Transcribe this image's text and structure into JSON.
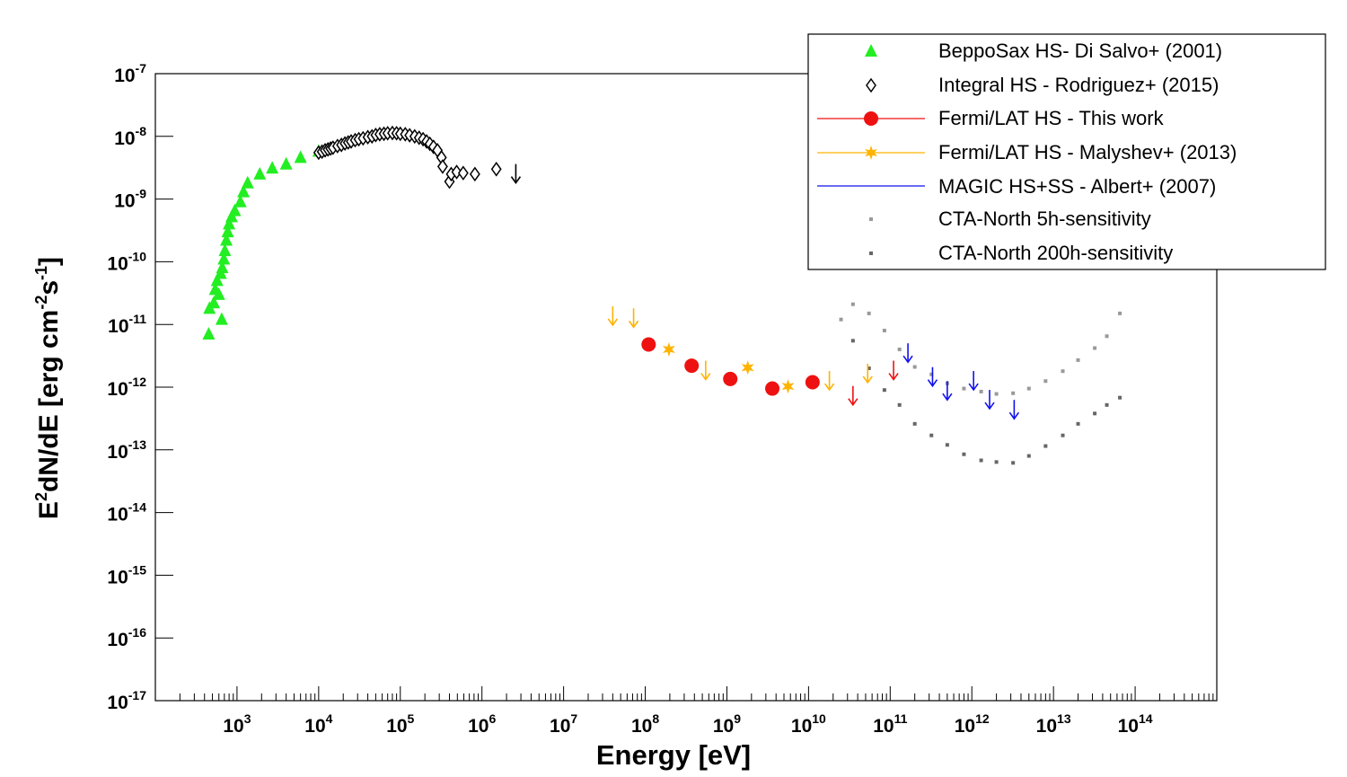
{
  "chart_data": {
    "type": "scatter",
    "xscale": "log",
    "yscale": "log",
    "xlabel": "Energy [eV]",
    "ylabel_parts": {
      "a": "E",
      "b": "2",
      "c": "dN/dE [erg cm",
      "d": "-2",
      "e": "s",
      "f": "-1",
      "g": "]"
    },
    "xlim": [
      100,
      1000000000000000.0
    ],
    "ylim": [
      1e-17,
      1e-07
    ],
    "x_tick_labels": [
      {
        "base": "10",
        "exp": "3",
        "value": 1000.0
      },
      {
        "base": "10",
        "exp": "4",
        "value": 10000.0
      },
      {
        "base": "10",
        "exp": "5",
        "value": 100000.0
      },
      {
        "base": "10",
        "exp": "6",
        "value": 1000000.0
      },
      {
        "base": "10",
        "exp": "7",
        "value": 10000000.0
      },
      {
        "base": "10",
        "exp": "8",
        "value": 100000000.0
      },
      {
        "base": "10",
        "exp": "9",
        "value": 1000000000.0
      },
      {
        "base": "10",
        "exp": "10",
        "value": 10000000000.0
      },
      {
        "base": "10",
        "exp": "11",
        "value": 100000000000.0
      },
      {
        "base": "10",
        "exp": "12",
        "value": 1000000000000.0
      },
      {
        "base": "10",
        "exp": "13",
        "value": 10000000000000.0
      },
      {
        "base": "10",
        "exp": "14",
        "value": 100000000000000.0
      }
    ],
    "y_tick_labels": [
      {
        "base": "10",
        "exp": "-7",
        "value": 1e-07
      },
      {
        "base": "10",
        "exp": "-8",
        "value": 1e-08
      },
      {
        "base": "10",
        "exp": "-9",
        "value": 1e-09
      },
      {
        "base": "10",
        "exp": "-10",
        "value": 1e-10
      },
      {
        "base": "10",
        "exp": "-11",
        "value": 1e-11
      },
      {
        "base": "10",
        "exp": "-12",
        "value": 1e-12
      },
      {
        "base": "10",
        "exp": "-13",
        "value": 1e-13
      },
      {
        "base": "10",
        "exp": "-14",
        "value": 1e-14
      },
      {
        "base": "10",
        "exp": "-15",
        "value": 1e-15
      },
      {
        "base": "10",
        "exp": "-16",
        "value": 1e-16
      },
      {
        "base": "10",
        "exp": "-17",
        "value": 1e-17
      }
    ],
    "legend_position": "top-right",
    "series": [
      {
        "name": "BeppoSax  HS- Di Salvo+ (2001)",
        "color": "#22ee22",
        "marker": "triangle",
        "points": [
          [
            450,
            7e-12
          ],
          [
            460,
            1.8e-11
          ],
          [
            520,
            2.2e-11
          ],
          [
            540,
            3.6e-11
          ],
          [
            570,
            5e-11
          ],
          [
            600,
            3e-11
          ],
          [
            630,
            6.5e-11
          ],
          [
            650,
            1.2e-11
          ],
          [
            660,
            8e-11
          ],
          [
            690,
            1.1e-10
          ],
          [
            710,
            1.5e-10
          ],
          [
            740,
            2.2e-10
          ],
          [
            770,
            3e-10
          ],
          [
            800,
            4e-10
          ],
          [
            860,
            5.2e-10
          ],
          [
            940,
            6.5e-10
          ],
          [
            1100,
            9e-10
          ],
          [
            1200,
            1.3e-09
          ],
          [
            1350,
            1.8e-09
          ],
          [
            1900,
            2.5e-09
          ],
          [
            2700,
            3.1e-09
          ],
          [
            4000,
            3.6e-09
          ],
          [
            6000,
            4.6e-09
          ],
          [
            10000,
            5.8e-09
          ]
        ]
      },
      {
        "name": "Integral HS - Rodriguez+ (2015)",
        "color": "#000000",
        "marker": "open-diamond",
        "points": [
          [
            10000,
            5.5e-09
          ],
          [
            11000,
            5.7e-09
          ],
          [
            12000,
            6e-09
          ],
          [
            13000,
            6.2e-09
          ],
          [
            14000,
            6.4e-09
          ],
          [
            15000,
            6.6e-09
          ],
          [
            17000,
            7e-09
          ],
          [
            19000,
            7.3e-09
          ],
          [
            21000,
            7.7e-09
          ],
          [
            23000,
            8e-09
          ],
          [
            25000,
            8.3e-09
          ],
          [
            28000,
            8.7e-09
          ],
          [
            31000,
            9e-09
          ],
          [
            35000,
            9.3e-09
          ],
          [
            40000,
            9.7e-09
          ],
          [
            45000,
            1e-08
          ],
          [
            50000,
            1.05e-08
          ],
          [
            56000,
            1.08e-08
          ],
          [
            63000,
            1.1e-08
          ],
          [
            70000,
            1.12e-08
          ],
          [
            80000,
            1.13e-08
          ],
          [
            90000,
            1.12e-08
          ],
          [
            100000,
            1.1e-08
          ],
          [
            115000,
            1.08e-08
          ],
          [
            130000,
            1.04e-08
          ],
          [
            150000,
            1e-08
          ],
          [
            170000,
            9.5e-09
          ],
          [
            190000,
            9e-09
          ],
          [
            210000,
            8.3e-09
          ],
          [
            230000,
            7.6e-09
          ],
          [
            255000,
            6.8e-09
          ],
          [
            285000,
            6e-09
          ],
          [
            320000,
            4.6e-09
          ],
          [
            330000,
            3.3e-09
          ],
          [
            400000,
            1.9e-09
          ],
          [
            420000,
            2.5e-09
          ],
          [
            490000,
            2.7e-09
          ],
          [
            590000,
            2.6e-09
          ],
          [
            820000,
            2.5e-09
          ],
          [
            1500000,
            3e-09
          ]
        ]
      },
      {
        "name": "Fermi/LAT HS - This work",
        "color": "#ee1111",
        "marker": "filled-circle",
        "points": [
          [
            110000000.0,
            4.8e-12
          ],
          [
            370000000.0,
            2.2e-12
          ],
          [
            1100000000.0,
            1.35e-12
          ],
          [
            3600000000.0,
            9.5e-13
          ],
          [
            11200000000.0,
            1.2e-12
          ]
        ]
      },
      {
        "name": "Fermi/LAT HS - Malyshev+ (2013)",
        "color": "#ffb300",
        "marker": "star",
        "points": [
          [
            195000000.0,
            4e-12
          ],
          [
            1800000000.0,
            2.05e-12
          ],
          [
            5600000000.0,
            1.03e-12
          ]
        ]
      },
      {
        "name": "MAGIC HS+SS - Albert+ (2007)",
        "color": "#1111ee",
        "marker": "line",
        "points": []
      },
      {
        "name": "CTA-North 5h-sensitivity",
        "color": "#999999",
        "marker": "dot",
        "points": [
          [
            25000000000.0,
            1.2e-11
          ],
          [
            35000000000.0,
            2.1e-11
          ],
          [
            55000000000.0,
            1.5e-11
          ],
          [
            85000000000.0,
            8e-12
          ],
          [
            130000000000.0,
            4e-12
          ],
          [
            200000000000.0,
            2.1e-12
          ],
          [
            320000000000.0,
            1.6e-12
          ],
          [
            500000000000.0,
            1.15e-12
          ],
          [
            800000000000.0,
            9.5e-13
          ],
          [
            1300000000000.0,
            8.5e-13
          ],
          [
            2000000000000.0,
            7.8e-13
          ],
          [
            3200000000000.0,
            8e-13
          ],
          [
            5000000000000.0,
            9.5e-13
          ],
          [
            8000000000000.0,
            1.25e-12
          ],
          [
            13000000000000.0,
            1.8e-12
          ],
          [
            20000000000000.0,
            2.7e-12
          ],
          [
            32000000000000.0,
            4.2e-12
          ],
          [
            45000000000000.0,
            6.5e-12
          ],
          [
            65000000000000.0,
            1.5e-11
          ]
        ]
      },
      {
        "name": "CTA-North 200h-sensitivity",
        "color": "#666666",
        "marker": "dot",
        "points": [
          [
            35000000000.0,
            5.5e-12
          ],
          [
            55000000000.0,
            2e-12
          ],
          [
            85000000000.0,
            9e-13
          ],
          [
            130000000000.0,
            5.2e-13
          ],
          [
            200000000000.0,
            2.6e-13
          ],
          [
            320000000000.0,
            1.7e-13
          ],
          [
            500000000000.0,
            1.2e-13
          ],
          [
            800000000000.0,
            8.5e-14
          ],
          [
            1300000000000.0,
            6.8e-14
          ],
          [
            2000000000000.0,
            6.4e-14
          ],
          [
            3200000000000.0,
            6.2e-14
          ],
          [
            5000000000000.0,
            8e-14
          ],
          [
            8000000000000.0,
            1.15e-13
          ],
          [
            13000000000000.0,
            1.7e-13
          ],
          [
            20000000000000.0,
            2.6e-13
          ],
          [
            32000000000000.0,
            3.8e-13
          ],
          [
            45000000000000.0,
            5.2e-13
          ],
          [
            65000000000000.0,
            6.8e-13
          ]
        ]
      }
    ],
    "upper_limits": [
      {
        "series": "Integral HS - Rodriguez+ (2015)",
        "color": "#000000",
        "x": 2600000.0,
        "y": 2.6e-09
      },
      {
        "series": "Fermi/LAT HS - Malyshev+ (2013)",
        "color": "#ffb300",
        "x": 40000000.0,
        "y": 1.4e-11
      },
      {
        "series": "Fermi/LAT HS - Malyshev+ (2013)",
        "color": "#ffb300",
        "x": 72000000.0,
        "y": 1.3e-11
      },
      {
        "series": "Fermi/LAT HS - Malyshev+ (2013)",
        "color": "#ffb300",
        "x": 550000000.0,
        "y": 1.9e-12
      },
      {
        "series": "Fermi/LAT HS - Malyshev+ (2013)",
        "color": "#ffb300",
        "x": 18000000000.0,
        "y": 1.3e-12
      },
      {
        "series": "Fermi/LAT HS - Malyshev+ (2013)",
        "color": "#ffb300",
        "x": 53000000000.0,
        "y": 1.7e-12
      },
      {
        "series": "Fermi/LAT HS - This work",
        "color": "#ee1111",
        "x": 35000000000.0,
        "y": 7.5e-13
      },
      {
        "series": "Fermi/LAT HS - This work",
        "color": "#ee1111",
        "x": 110000000000.0,
        "y": 1.9e-12
      },
      {
        "series": "MAGIC HS+SS - Albert+ (2007)",
        "color": "#1111ee",
        "x": 165000000000.0,
        "y": 3.6e-12
      },
      {
        "series": "MAGIC HS+SS - Albert+ (2007)",
        "color": "#1111ee",
        "x": 330000000000.0,
        "y": 1.5e-12
      },
      {
        "series": "MAGIC HS+SS - Albert+ (2007)",
        "color": "#1111ee",
        "x": 500000000000.0,
        "y": 9e-13
      },
      {
        "series": "MAGIC HS+SS - Albert+ (2007)",
        "color": "#1111ee",
        "x": 1050000000000.0,
        "y": 1.3e-12
      },
      {
        "series": "MAGIC HS+SS - Albert+ (2007)",
        "color": "#1111ee",
        "x": 1650000000000.0,
        "y": 6.5e-13
      },
      {
        "series": "MAGIC HS+SS - Albert+ (2007)",
        "color": "#1111ee",
        "x": 3300000000000.0,
        "y": 4.5e-13
      }
    ]
  }
}
